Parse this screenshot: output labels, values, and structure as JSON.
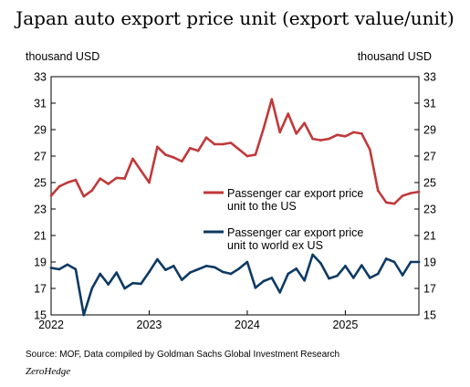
{
  "chart_data": {
    "type": "line",
    "title": "Japan auto export price unit (export value/unit)",
    "ylabel_left": "thousand  USD",
    "ylabel_right": "thousand  USD",
    "ylim": [
      15,
      33
    ],
    "yticks": [
      15,
      17,
      19,
      21,
      23,
      25,
      27,
      29,
      31,
      33
    ],
    "xlim": [
      2022.0,
      2025.75
    ],
    "xticks": [
      {
        "label": "2022",
        "value": 2022
      },
      {
        "label": "2023",
        "value": 2023
      },
      {
        "label": "2024",
        "value": 2024
      },
      {
        "label": "2025",
        "value": 2025
      }
    ],
    "grid": false,
    "legend_placement": "middle-right",
    "series": [
      {
        "name": "Passenger car export price unit to the US",
        "legend_lines": [
          "Passenger car export price",
          "unit to the US"
        ],
        "color": "#c0393b",
        "x": [
          2022.0,
          2022.083,
          2022.167,
          2022.25,
          2022.333,
          2022.417,
          2022.5,
          2022.583,
          2022.667,
          2022.75,
          2022.833,
          2022.917,
          2023.0,
          2023.083,
          2023.167,
          2023.25,
          2023.333,
          2023.417,
          2023.5,
          2023.583,
          2023.667,
          2023.75,
          2023.833,
          2023.917,
          2024.0,
          2024.083,
          2024.167,
          2024.25,
          2024.333,
          2024.417,
          2024.5,
          2024.583,
          2024.667,
          2024.75,
          2024.833,
          2024.917,
          2025.0,
          2025.083,
          2025.167,
          2025.25,
          2025.333,
          2025.417,
          2025.5,
          2025.583,
          2025.667,
          2025.75
        ],
        "values": [
          24.0,
          24.7,
          25.0,
          25.2,
          23.95,
          24.4,
          25.3,
          24.9,
          25.35,
          25.3,
          26.8,
          25.9,
          25.0,
          27.7,
          27.1,
          26.9,
          26.6,
          27.6,
          27.4,
          28.4,
          27.9,
          27.9,
          28.0,
          27.5,
          27.0,
          27.1,
          29.1,
          31.3,
          28.8,
          30.2,
          28.7,
          29.5,
          28.3,
          28.2,
          28.3,
          28.6,
          28.5,
          28.8,
          28.7,
          27.5,
          24.4,
          23.5,
          23.4,
          24.0,
          24.2,
          24.3
        ]
      },
      {
        "name": "Passenger car export price unit to world ex US",
        "legend_lines": [
          "Passenger car export price",
          "unit to world ex US"
        ],
        "color": "#0d3a63",
        "x": [
          2022.0,
          2022.083,
          2022.167,
          2022.25,
          2022.333,
          2022.417,
          2022.5,
          2022.583,
          2022.667,
          2022.75,
          2022.833,
          2022.917,
          2023.0,
          2023.083,
          2023.167,
          2023.25,
          2023.333,
          2023.417,
          2023.5,
          2023.583,
          2023.667,
          2023.75,
          2023.833,
          2023.917,
          2024.0,
          2024.083,
          2024.167,
          2024.25,
          2024.333,
          2024.417,
          2024.5,
          2024.583,
          2024.667,
          2024.75,
          2024.833,
          2024.917,
          2025.0,
          2025.083,
          2025.167,
          2025.25,
          2025.333,
          2025.417,
          2025.5,
          2025.583,
          2025.667,
          2025.75
        ],
        "values": [
          18.55,
          18.45,
          18.8,
          18.45,
          15.0,
          17.0,
          18.1,
          17.3,
          18.2,
          17.0,
          17.4,
          17.35,
          18.25,
          19.2,
          18.4,
          18.7,
          17.65,
          18.2,
          18.45,
          18.7,
          18.6,
          18.25,
          18.1,
          18.5,
          19.0,
          17.05,
          17.55,
          17.8,
          16.7,
          18.1,
          18.5,
          17.6,
          19.55,
          18.9,
          17.75,
          17.95,
          18.7,
          17.8,
          18.75,
          17.8,
          18.1,
          19.25,
          19.0,
          18.0,
          19.0,
          19.0
        ]
      }
    ],
    "source": "Source: MOF, Data compiled by Goldman Sachs Global Investment Research",
    "brand": "ZeroHedge"
  }
}
